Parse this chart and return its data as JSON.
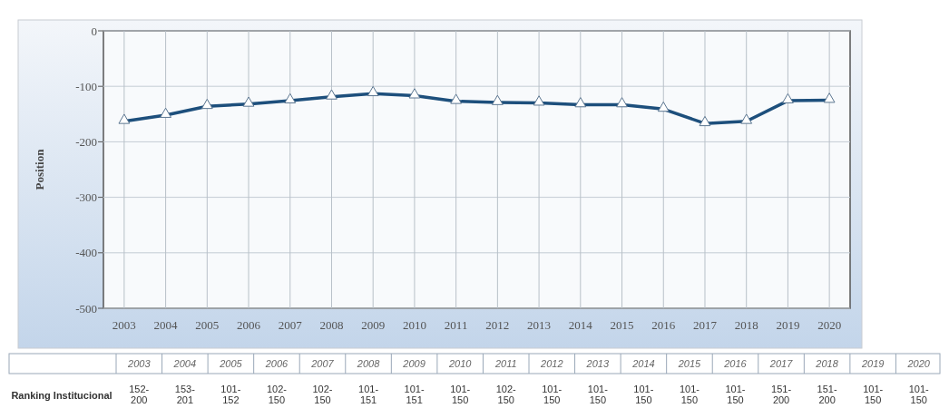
{
  "chart_data": {
    "type": "line",
    "ylabel": "Position",
    "categories": [
      "2003",
      "2004",
      "2005",
      "2006",
      "2007",
      "2008",
      "2009",
      "2010",
      "2011",
      "2012",
      "2013",
      "2014",
      "2015",
      "2016",
      "2017",
      "2018",
      "2019",
      "2020"
    ],
    "series": [
      {
        "color": "#1d4f7c",
        "values": [
          -163,
          -152,
          -136,
          -132,
          -126,
          -119,
          -113,
          -117,
          -127,
          -129,
          -130,
          -133,
          -133,
          -141,
          -167,
          -163,
          -126,
          -125
        ]
      }
    ],
    "ylim": [
      -500,
      0
    ],
    "yticks": [
      -500,
      -400,
      -300,
      -200,
      -100,
      0
    ],
    "grid": true,
    "marker": "triangle",
    "annotations": [
      "Ranking Institucional",
      "2003",
      "2004",
      "2005",
      "2006",
      "2007",
      "2008",
      "2009",
      "2010",
      "2011",
      "2012",
      "2013",
      "2014",
      "2015",
      "2016",
      "2017",
      "2018",
      "2019",
      "2020",
      "152-200",
      "153-201",
      "101-152",
      "102-150",
      "102-150",
      "101-151",
      "101-151",
      "101-150",
      "102-150",
      "101-150",
      "101-150",
      "101-150",
      "101-150",
      "101-150",
      "151-200",
      "151-200",
      "101-150",
      "101-150"
    ]
  }
}
